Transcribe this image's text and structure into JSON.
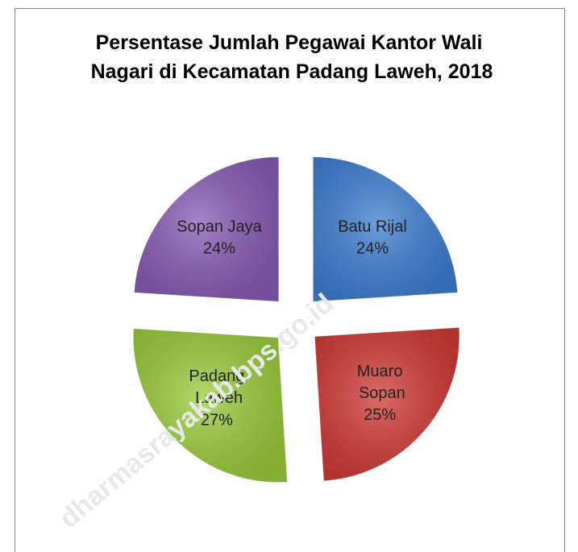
{
  "chart_data": {
    "type": "pie",
    "title": "Persentase Jumlah Pegawai Kantor Wali Nagari di Kecamatan Padang Laweh, 2018",
    "categories": [
      "Batu Rijal",
      "Muaro Sopan",
      "Padang Laweh",
      "Sopan Jaya"
    ],
    "values": [
      24,
      25,
      27,
      24
    ],
    "value_labels": [
      "24%",
      "25%",
      "27%",
      "24%"
    ],
    "colors": [
      "#3e7fd2",
      "#d13b36",
      "#9bce3c",
      "#8a5cb6"
    ],
    "watermark": "dharmasrayakab.bps.go.id"
  }
}
